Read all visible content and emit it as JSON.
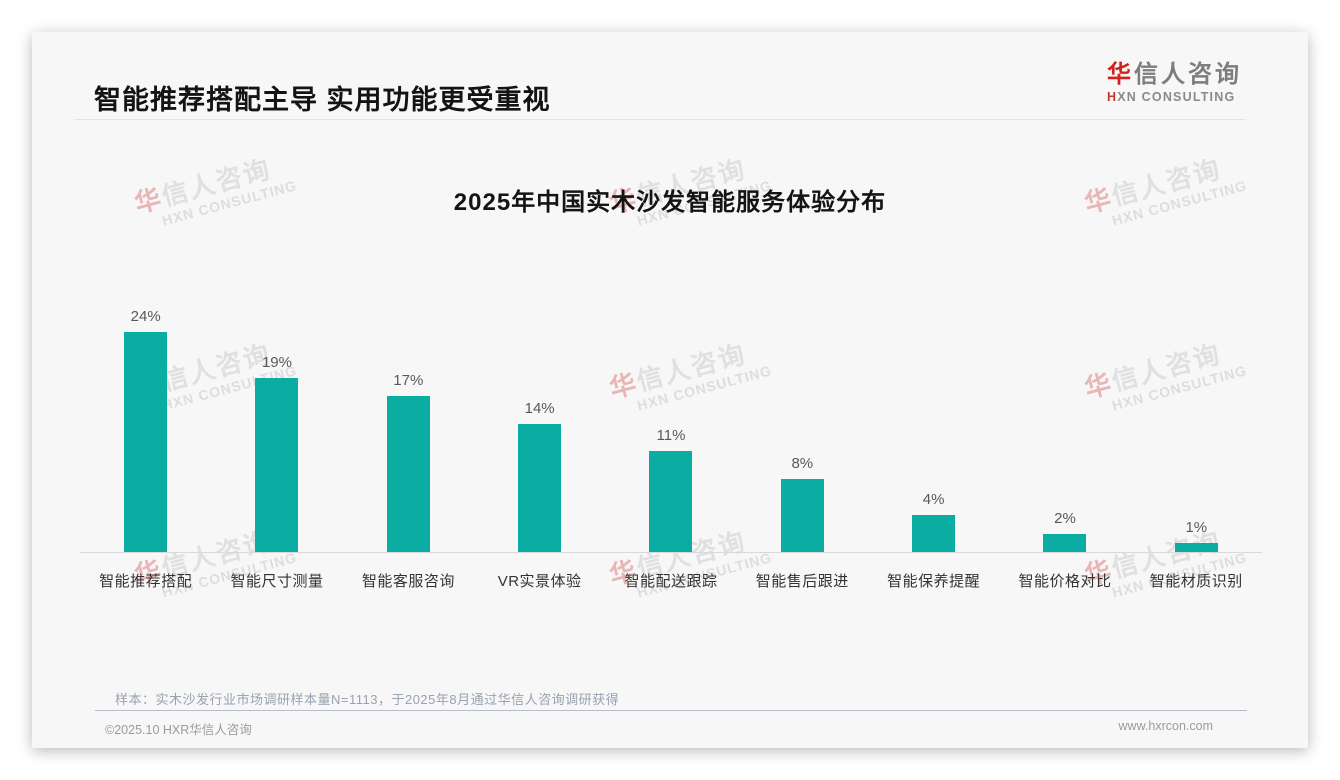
{
  "page": {
    "header": {
      "title": "智能推荐搭配主导 实用功能更受重视"
    },
    "logo": {
      "cn_first": "华",
      "cn_rest": "信人咨询",
      "en_first": "H",
      "en_rest": "XN CONSULTING"
    },
    "watermark": {
      "cn_first": "华",
      "cn_rest": "信人咨询",
      "en": "HXN CONSULTING"
    },
    "footnote": {
      "text": "样本：实木沙发行业市场调研样本量N=1113，于2025年8月通过华信人咨询调研获得"
    },
    "footer": {
      "left": "©2025.10 HXR华信人咨询",
      "right": "www.hxrcon.com"
    }
  },
  "chart_data": {
    "type": "bar",
    "title": "2025年中国实木沙发智能服务体验分布",
    "categories": [
      "智能推荐搭配",
      "智能尺寸测量",
      "智能客服咨询",
      "VR实景体验",
      "智能配送跟踪",
      "智能售后跟进",
      "智能保养提醒",
      "智能价格对比",
      "智能材质识别"
    ],
    "values": [
      24,
      19,
      17,
      14,
      11,
      8,
      4,
      2,
      1
    ],
    "unit": "%",
    "value_labels": [
      "24%",
      "19%",
      "17%",
      "14%",
      "11%",
      "8%",
      "4%",
      "2%",
      "1%"
    ],
    "bar_color": "#0bada3",
    "xlabel": "",
    "ylabel": "",
    "ylim": [
      0,
      26
    ],
    "grid": false,
    "legend": false,
    "data_labels": "above-bars",
    "baseline_color": "#d9d9d9"
  },
  "colors": {
    "accent_teal": "#0bada3",
    "brand_red": "#cf231c",
    "title_text": "#141414",
    "category_text": "#333333",
    "value_text": "#555a5e",
    "footnote_text": "#98a2b0",
    "footer_text": "#9b9b9b",
    "card_bg": "#f7f7f8"
  }
}
